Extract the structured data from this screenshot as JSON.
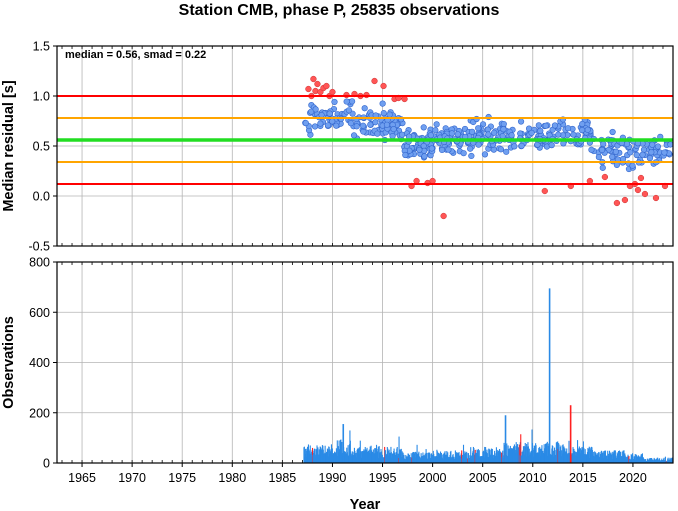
{
  "title": "Station CMB, phase P, 25835 observations",
  "colors": {
    "grid": "#b4b4b4",
    "median_line": "#22dd22",
    "smad_line": "#ffa500",
    "limit_line": "#ff0000",
    "point_normal": "#6f9ff0",
    "point_outlier": "#ff5555",
    "bar": "#2a8ae6",
    "bar_highlight": "#ff2020"
  },
  "chart_data": [
    {
      "type": "scatter",
      "panel": "top",
      "ylabel": "Median residual [s]",
      "xlabel": "",
      "xlim": [
        1962.5,
        2024.0
      ],
      "ylim": [
        -0.5,
        1.5
      ],
      "yticks": [
        "-0.5",
        "0.0",
        "0.5",
        "1.0",
        "1.5"
      ],
      "grid": true,
      "annotation": "median = 0.56, smad = 0.22",
      "hlines": [
        {
          "role": "median",
          "y": 0.56
        },
        {
          "role": "median+1smad",
          "y": 0.78
        },
        {
          "role": "median-1smad",
          "y": 0.34
        },
        {
          "role": "median+2smad",
          "y": 1.0
        },
        {
          "role": "median-2smad",
          "y": 0.12
        }
      ],
      "outliers": [
        [
          1987.6,
          1.07
        ],
        [
          1987.9,
          1.0
        ],
        [
          1988.1,
          1.17
        ],
        [
          1988.3,
          1.05
        ],
        [
          1988.5,
          1.12
        ],
        [
          1988.8,
          1.04
        ],
        [
          1989.1,
          1.08
        ],
        [
          1989.4,
          1.1
        ],
        [
          1989.7,
          1.0
        ],
        [
          1990.0,
          1.04
        ],
        [
          1991.4,
          1.01
        ],
        [
          1992.2,
          1.02
        ],
        [
          1992.8,
          1.0
        ],
        [
          1993.4,
          1.01
        ],
        [
          1994.2,
          1.15
        ],
        [
          1995.1,
          1.1
        ],
        [
          1996.2,
          0.97
        ],
        [
          1996.6,
          0.98
        ],
        [
          1997.2,
          0.97
        ],
        [
          1997.9,
          0.1
        ],
        [
          1998.4,
          0.15
        ],
        [
          1999.5,
          0.13
        ],
        [
          2000.0,
          0.15
        ],
        [
          2001.1,
          -0.2
        ],
        [
          2011.2,
          0.05
        ],
        [
          2013.8,
          0.1
        ],
        [
          2015.7,
          0.15
        ],
        [
          2017.2,
          0.19
        ],
        [
          2018.4,
          -0.07
        ],
        [
          2019.2,
          -0.04
        ],
        [
          2019.7,
          0.1
        ],
        [
          2020.2,
          0.12
        ],
        [
          2020.5,
          0.06
        ],
        [
          2020.8,
          0.18
        ],
        [
          2021.2,
          0.02
        ],
        [
          2022.3,
          -0.02
        ],
        [
          2023.2,
          0.1
        ]
      ]
    },
    {
      "type": "bar",
      "panel": "bottom",
      "ylabel": "Observations",
      "xlabel": "Year",
      "xlim": [
        1962.5,
        2024.0
      ],
      "ylim": [
        0,
        800
      ],
      "xticks": [
        "1965",
        "1970",
        "1975",
        "1980",
        "1985",
        "1990",
        "1995",
        "2000",
        "2005",
        "2010",
        "2015",
        "2020"
      ],
      "yticks": [
        "0",
        "200",
        "400",
        "600",
        "800"
      ],
      "grid": true,
      "peaks": [
        {
          "x": 2011.6,
          "value": 695
        },
        {
          "x": 2013.7,
          "value": 230
        },
        {
          "x": 1991.0,
          "value": 155
        },
        {
          "x": 2007.2,
          "value": 190
        }
      ]
    }
  ]
}
